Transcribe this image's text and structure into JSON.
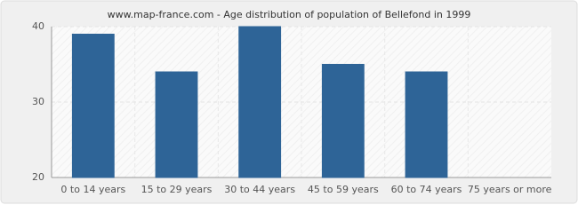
{
  "chart_data": {
    "type": "bar",
    "title": "www.map-france.com - Age distribution of population of Bellefond in 1999",
    "categories": [
      "0 to 14 years",
      "15 to 29 years",
      "30 to 44 years",
      "45 to 59 years",
      "60 to 74 years",
      "75 years or more"
    ],
    "values": [
      39,
      34,
      40,
      35,
      34,
      20
    ],
    "color": "#2e6497",
    "ylim": [
      20,
      40
    ],
    "yticks": [
      20,
      30,
      40
    ],
    "grid": true
  }
}
